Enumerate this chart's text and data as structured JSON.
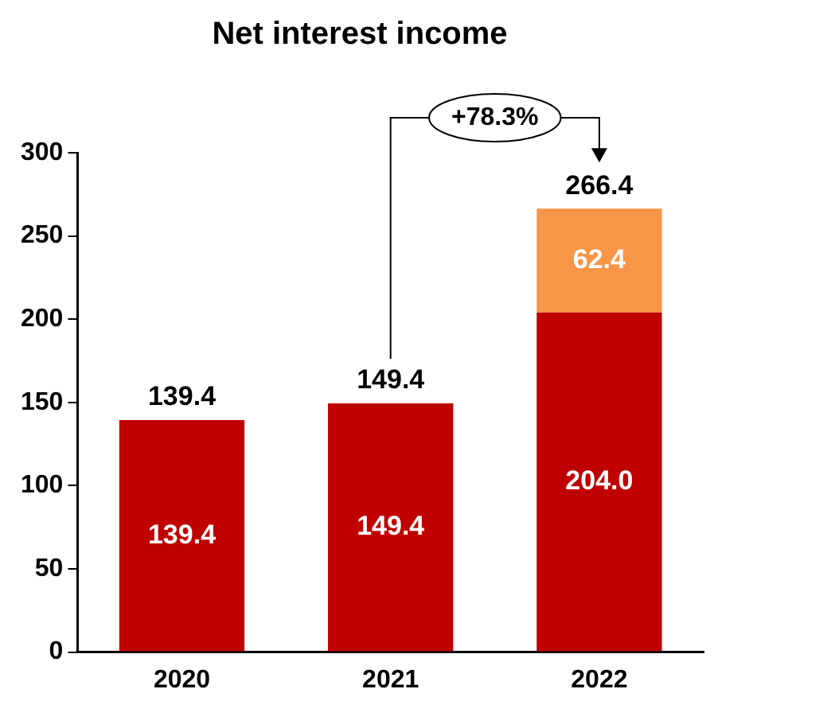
{
  "chart_data": {
    "type": "bar",
    "title": "Net interest income",
    "categories": [
      "2020",
      "2021",
      "2022"
    ],
    "stacked": true,
    "series": [
      {
        "color": "#c00000",
        "values": [
          139.4,
          149.4,
          204.0
        ],
        "value_labels": [
          "139.4",
          "149.4",
          "204.0"
        ]
      },
      {
        "color": "#f79646",
        "values": [
          null,
          null,
          62.4
        ],
        "value_labels": [
          null,
          null,
          "62.4"
        ]
      }
    ],
    "totals": [
      "139.4",
      "149.4",
      "266.4"
    ],
    "annotations": [
      "+78.3%"
    ],
    "ylim": [
      0,
      300
    ],
    "yticks": [
      0,
      50,
      100,
      150,
      200,
      250,
      300
    ],
    "grid": false,
    "legend": false
  }
}
